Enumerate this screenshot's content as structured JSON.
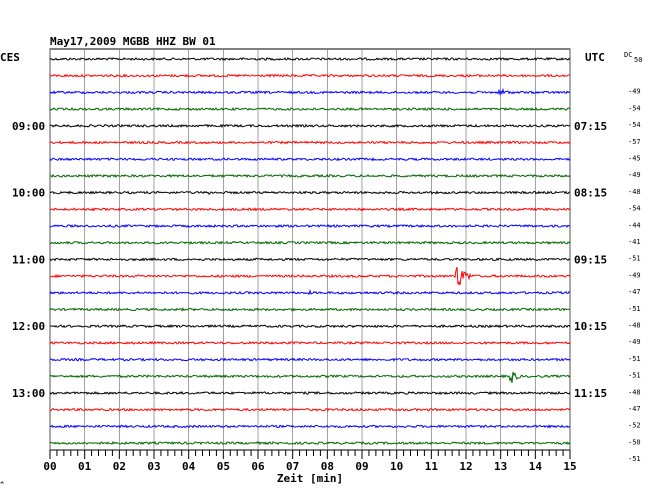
{
  "header": {
    "title": "May17,2009   MGBB HHZ BW 01",
    "left_label": "CES",
    "right_label": "UTC",
    "dc_label": "DC",
    "corner_mark": "^"
  },
  "chart_data": {
    "type": "line",
    "title": "May17,2009   MGBB HHZ BW 01",
    "xlabel": "Zeit [min]",
    "ylabel": "",
    "xlim": [
      0,
      15
    ],
    "x_ticks": [
      "00",
      "01",
      "02",
      "03",
      "04",
      "05",
      "06",
      "07",
      "08",
      "09",
      "10",
      "11",
      "12",
      "13",
      "14",
      "15"
    ],
    "grid": true,
    "trace_count": 24,
    "trace_colors": [
      "#000000",
      "#ff0000",
      "#0000ff",
      "#006600"
    ],
    "left_time_labels": [
      {
        "trace": 4,
        "text": "09:00"
      },
      {
        "trace": 8,
        "text": "10:00"
      },
      {
        "trace": 12,
        "text": "11:00"
      },
      {
        "trace": 16,
        "text": "12:00"
      },
      {
        "trace": 20,
        "text": "13:00"
      }
    ],
    "right_time_labels": [
      {
        "trace": 0,
        "text": "50"
      },
      {
        "trace": 4,
        "text": "07:15"
      },
      {
        "trace": 8,
        "text": "08:15"
      },
      {
        "trace": 12,
        "text": "09:15"
      },
      {
        "trace": 16,
        "text": "10:15"
      },
      {
        "trace": 20,
        "text": "11:15"
      }
    ],
    "dc_values": [
      "50",
      "-49",
      "-54",
      "-54",
      "-57",
      "-45",
      "-49",
      "-48",
      "-54",
      "-44",
      "-41",
      "-51",
      "-49",
      "-47",
      "-51",
      "-48",
      "-49",
      "-51",
      "-51",
      "-48",
      "-47",
      "-52",
      "-50",
      "-51"
    ],
    "events": [
      {
        "trace": 2,
        "minute": 13.0,
        "amplitude": 4,
        "duration": 1.0
      },
      {
        "trace": 13,
        "minute": 11.75,
        "amplitude": 14,
        "duration": 0.8
      },
      {
        "trace": 14,
        "minute": 7.5,
        "amplitude": 2,
        "duration": 0.6
      },
      {
        "trace": 19,
        "minute": 13.3,
        "amplitude": 8,
        "duration": 0.6
      },
      {
        "trace": 8,
        "minute": 4.6,
        "amplitude": 2,
        "duration": 0.4
      }
    ]
  }
}
